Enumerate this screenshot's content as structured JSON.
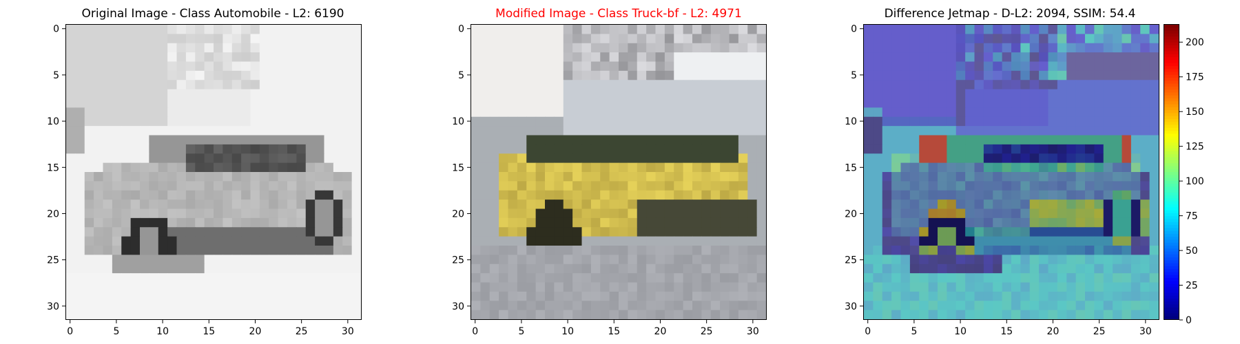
{
  "panels": [
    {
      "title": "Original Image - Class Automobile - L2: 6190",
      "title_color": "#000000",
      "image": "original-image",
      "xticks": [
        "0",
        "5",
        "10",
        "15",
        "20",
        "25",
        "30"
      ],
      "yticks": [
        "0",
        "5",
        "10",
        "15",
        "20",
        "25",
        "30"
      ]
    },
    {
      "title": "Modified Image - Class Truck-bf - L2: 4971",
      "title_color": "#ff0000",
      "image": "modified-image",
      "xticks": [
        "0",
        "5",
        "10",
        "15",
        "20",
        "25",
        "30"
      ],
      "yticks": [
        "0",
        "5",
        "10",
        "15",
        "20",
        "25",
        "30"
      ]
    },
    {
      "title": "Difference Jetmap - D-L2: 2094, SSIM: 54.4",
      "title_color": "#000000",
      "image": "difference-jetmap",
      "xticks": [
        "0",
        "5",
        "10",
        "15",
        "20",
        "25",
        "30"
      ],
      "yticks": [
        "0",
        "5",
        "10",
        "15",
        "20",
        "25",
        "30"
      ]
    }
  ],
  "colorbar": {
    "colormap": "jet",
    "ticks": [
      "0",
      "25",
      "50",
      "75",
      "100",
      "125",
      "150",
      "175",
      "200"
    ],
    "range": [
      0,
      213
    ]
  }
}
